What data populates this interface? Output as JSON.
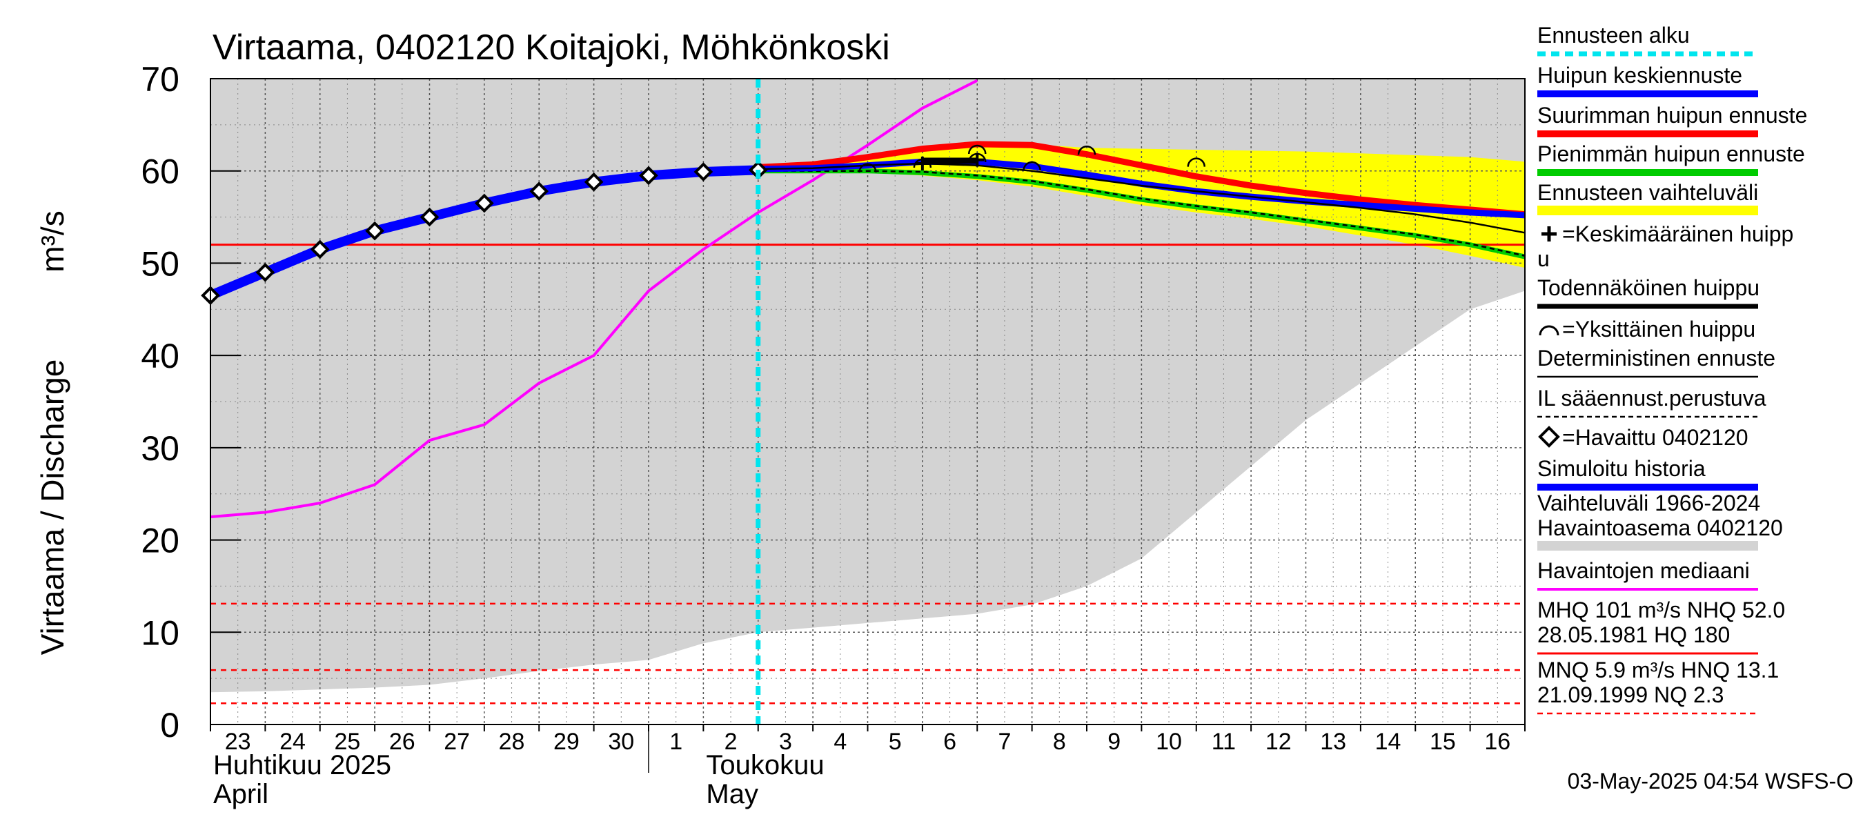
{
  "chart_data": {
    "type": "line",
    "title": "Virtaama, 0402120 Koitajoki, Möhkönkoski",
    "ylabel": "Virtaama / Discharge    m³/s",
    "ylabel_main": "Virtaama / Discharge",
    "ylabel_unit": "m³/s",
    "ylim": [
      0,
      70
    ],
    "yticks": [
      0,
      10,
      20,
      30,
      40,
      50,
      60,
      70
    ],
    "grid": true,
    "legend_position": "right",
    "x_days": [
      "23",
      "24",
      "25",
      "26",
      "27",
      "28",
      "29",
      "30",
      "1",
      "2",
      "3",
      "4",
      "5",
      "6",
      "7",
      "8",
      "9",
      "10",
      "11",
      "12",
      "13",
      "14",
      "15",
      "16"
    ],
    "month_labels": [
      {
        "line1": "Huhtikuu  2025",
        "line2": "April",
        "day_index": 0
      },
      {
        "line1": "Toukokuu",
        "line2": "May",
        "day_index": 9
      }
    ],
    "forecast_start_day": 10,
    "colors": {
      "band": "#d3d3d3",
      "forecast_band": "#ffff00",
      "forecast_start": "#00e5ee",
      "mean_peak": "#0000ff",
      "max_peak": "#ff0000",
      "min_peak": "#00cc00",
      "probable_peak": "#000000",
      "deterministic": "#000000",
      "median": "#ff00ff",
      "simulated": "#0000ff",
      "threshold_solid": "#ff0000",
      "threshold_dashed": "#ff0000"
    },
    "history_band": {
      "x": [
        0,
        1,
        2,
        3,
        4,
        5,
        6,
        7,
        8,
        9,
        10,
        11,
        12,
        13,
        14,
        15,
        16,
        17,
        18,
        19,
        20,
        21,
        22,
        23,
        24
      ],
      "upper": [
        70,
        70,
        70,
        70,
        70,
        70,
        70,
        70,
        70,
        70,
        70,
        70,
        70,
        70,
        70,
        70,
        70,
        70,
        70,
        70,
        70,
        70,
        70,
        70,
        70
      ],
      "lower": [
        3.5,
        3.6,
        3.8,
        4.0,
        4.3,
        5.0,
        5.8,
        6.5,
        7.0,
        8.8,
        10.0,
        10.5,
        11.0,
        11.5,
        12.0,
        13.0,
        15.0,
        18.0,
        23.0,
        28.0,
        33.0,
        37.0,
        41.0,
        45.0,
        47.0
      ]
    },
    "forecast_band": {
      "x": [
        10,
        11,
        12,
        13,
        14,
        15,
        16,
        17,
        18,
        19,
        20,
        21,
        22,
        23,
        24
      ],
      "upper": [
        60.4,
        60.8,
        61.8,
        62.6,
        63.0,
        62.9,
        62.5,
        62.4,
        62.3,
        62.2,
        62.1,
        61.9,
        61.7,
        61.5,
        61.0
      ],
      "lower": [
        60.0,
        59.9,
        59.8,
        59.5,
        59.0,
        58.3,
        57.3,
        56.3,
        55.5,
        54.8,
        54.0,
        53.0,
        52.0,
        50.8,
        49.5
      ]
    },
    "series": [
      {
        "key": "simulated",
        "name": "Simuloitu historia",
        "x": [
          0,
          1,
          2,
          3,
          4,
          5,
          6,
          7,
          8,
          9,
          10
        ],
        "y": [
          46.5,
          49.0,
          51.5,
          53.5,
          55.0,
          56.5,
          57.8,
          58.8,
          59.5,
          59.9,
          60.1
        ]
      },
      {
        "key": "mean_peak",
        "name": "Huipun keskiennuste",
        "x": [
          10,
          11,
          12,
          13,
          14,
          15,
          16,
          17,
          18,
          19,
          20,
          21,
          22,
          23,
          24
        ],
        "y": [
          60.2,
          60.3,
          60.6,
          61.0,
          61.0,
          60.5,
          59.6,
          58.6,
          57.8,
          57.2,
          56.7,
          56.3,
          55.9,
          55.5,
          55.2
        ]
      },
      {
        "key": "max_peak",
        "name": "Suurimman huipun ennuste",
        "x": [
          10,
          11,
          12,
          13,
          14,
          15,
          16,
          17,
          18,
          19,
          20,
          21,
          22,
          23,
          24
        ],
        "y": [
          60.4,
          60.7,
          61.5,
          62.4,
          62.9,
          62.8,
          61.8,
          60.6,
          59.4,
          58.4,
          57.6,
          56.9,
          56.3,
          55.8,
          55.3
        ]
      },
      {
        "key": "min_peak",
        "name": "Pienimmän huipun ennuste",
        "x": [
          10,
          11,
          12,
          13,
          14,
          15,
          16,
          17,
          18,
          19,
          20,
          21,
          22,
          23,
          24
        ],
        "y": [
          60.0,
          60.0,
          60.0,
          59.8,
          59.4,
          58.8,
          57.9,
          56.9,
          56.1,
          55.4,
          54.6,
          53.8,
          53.0,
          52.0,
          50.7
        ]
      },
      {
        "key": "deterministic",
        "name": "Deterministinen ennuste",
        "x": [
          10,
          11,
          12,
          13,
          14,
          15,
          16,
          17,
          18,
          19,
          20,
          21,
          22,
          23,
          24
        ],
        "y": [
          60.2,
          60.3,
          60.6,
          60.8,
          60.6,
          60.0,
          59.2,
          58.4,
          57.8,
          57.2,
          56.6,
          56.0,
          55.3,
          54.4,
          53.3
        ]
      },
      {
        "key": "il_based",
        "name": "IL sääennust.perustuva",
        "x": [
          10,
          11,
          12,
          13,
          14,
          15,
          16,
          17,
          18,
          19,
          20,
          21,
          22,
          23,
          24
        ],
        "y": [
          60.0,
          60.0,
          60.0,
          59.9,
          59.5,
          58.9,
          58.0,
          57.0,
          56.2,
          55.5,
          54.7,
          53.9,
          53.1,
          52.1,
          50.8
        ]
      },
      {
        "key": "median",
        "name": "Havaintojen mediaani",
        "x": [
          0,
          1,
          2,
          3,
          4,
          5,
          6,
          7,
          8,
          9,
          10,
          11,
          12,
          13,
          14
        ],
        "y": [
          22.5,
          23.0,
          24.0,
          26.0,
          30.8,
          32.5,
          37.0,
          40.0,
          47.0,
          51.5,
          55.5,
          59.0,
          62.8,
          66.8,
          69.8
        ]
      }
    ],
    "observed": {
      "name": "=Havaittu 0402120",
      "x": [
        0,
        1,
        2,
        3,
        4,
        5,
        6,
        7,
        8,
        9,
        10
      ],
      "y": [
        46.5,
        49.0,
        51.5,
        53.5,
        55.0,
        56.5,
        57.8,
        58.8,
        59.5,
        59.9,
        60.1
      ]
    },
    "single_peaks": [
      {
        "x": 12.0,
        "y": 60.3
      },
      {
        "x": 13.0,
        "y": 60.8
      },
      {
        "x": 14.0,
        "y": 62.3
      },
      {
        "x": 14.0,
        "y": 61.4
      },
      {
        "x": 15.0,
        "y": 60.5
      },
      {
        "x": 16.0,
        "y": 62.2
      },
      {
        "x": 18.0,
        "y": 60.9
      }
    ],
    "mean_peak_markers": [
      {
        "x": 13.0,
        "y": 60.8
      },
      {
        "x": 14.0,
        "y": 61.2
      }
    ],
    "thresholds": [
      {
        "y": 52.0,
        "style": "solid",
        "label": "NHQ 52.0"
      },
      {
        "y": 13.1,
        "style": "dashed",
        "label": "HNQ 13.1"
      },
      {
        "y": 5.9,
        "style": "dashed",
        "label": "MNQ 5.9"
      },
      {
        "y": 2.3,
        "style": "dashed",
        "label": "NQ 2.3"
      }
    ]
  },
  "legend": [
    {
      "key": "forecast_start",
      "text": "Ennusteen alku",
      "swatch": "dashed-cyan"
    },
    {
      "key": "mean_peak",
      "text": "Huipun keskiennuste",
      "swatch": "blue"
    },
    {
      "key": "max_peak",
      "text": "Suurimman huipun ennuste",
      "swatch": "red"
    },
    {
      "key": "min_peak",
      "text": "Pienimmän huipun ennuste",
      "swatch": "green"
    },
    {
      "key": "forecast_band",
      "text": "Ennusteen vaihteluväli",
      "swatch": "yellow"
    },
    {
      "key": "mean_peak_marker",
      "text_line1": "=Keskimääräinen huipp",
      "text_line2": "u",
      "swatch": "plus"
    },
    {
      "key": "probable_peak",
      "text": "Todennäköinen huippu",
      "swatch": "black-thick"
    },
    {
      "key": "single_peak",
      "text": "=Yksittäinen huippu",
      "swatch": "arc"
    },
    {
      "key": "deterministic",
      "text": "Deterministinen ennuste",
      "swatch": "black-thin"
    },
    {
      "key": "il_based",
      "text": "IL sääennust.perustuva",
      "swatch": "black-dashed"
    },
    {
      "key": "observed",
      "text": "=Havaittu 0402120",
      "swatch": "diamond"
    },
    {
      "key": "simulated",
      "text": "Simuloitu historia",
      "swatch": "blue-thick"
    },
    {
      "key": "history_band",
      "text_line1": "Vaihteluväli 1966-2024",
      "text_line2": " Havaintoasema 0402120",
      "swatch": "gray"
    },
    {
      "key": "median",
      "text": "Havaintojen mediaani",
      "swatch": "magenta"
    },
    {
      "key": "stats_high",
      "text_line1": "MHQ  101 m³/s NHQ 52.0",
      "text_line2": "28.05.1981 HQ  180",
      "swatch": "red-solid"
    },
    {
      "key": "stats_low",
      "text_line1": "MNQ  5.9 m³/s HNQ 13.1",
      "text_line2": "21.09.1999 NQ  2.3",
      "swatch": "red-dashed"
    }
  ],
  "footer": "03-May-2025 04:54 WSFS-O"
}
